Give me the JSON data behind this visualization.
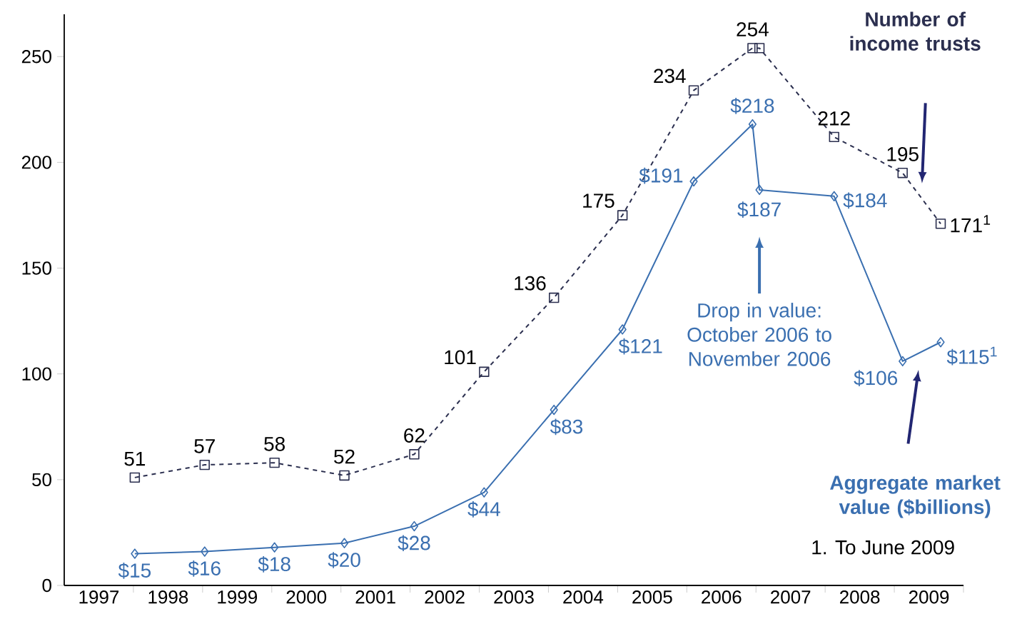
{
  "chart_data": {
    "type": "line",
    "xlim": [
      1997,
      2010
    ],
    "ylim": [
      0,
      270
    ],
    "xticks": [
      {
        "value": 1997.5,
        "label": "1997"
      },
      {
        "value": 1998,
        "label": null
      },
      {
        "value": 1998.5,
        "label": "1998"
      },
      {
        "value": 1999,
        "label": null
      },
      {
        "value": 1999.5,
        "label": "1999"
      },
      {
        "value": 2000,
        "label": null
      },
      {
        "value": 2000.5,
        "label": "2000"
      },
      {
        "value": 2001,
        "label": null
      },
      {
        "value": 2001.5,
        "label": "2001"
      },
      {
        "value": 2002,
        "label": null
      },
      {
        "value": 2002.5,
        "label": "2002"
      },
      {
        "value": 2003,
        "label": null
      },
      {
        "value": 2003.5,
        "label": "2003"
      },
      {
        "value": 2004,
        "label": null
      },
      {
        "value": 2004.5,
        "label": "2004"
      },
      {
        "value": 2005,
        "label": null
      },
      {
        "value": 2005.5,
        "label": "2005"
      },
      {
        "value": 2006,
        "label": null
      },
      {
        "value": 2006.5,
        "label": "2006"
      },
      {
        "value": 2007,
        "label": null
      },
      {
        "value": 2007.5,
        "label": "2007"
      },
      {
        "value": 2008,
        "label": null
      },
      {
        "value": 2008.5,
        "label": "2008"
      },
      {
        "value": 2009,
        "label": null
      },
      {
        "value": 2009.5,
        "label": "2009"
      },
      {
        "value": 2010,
        "label": null
      }
    ],
    "yticks": [
      0,
      50,
      100,
      150,
      200,
      250
    ],
    "series": [
      {
        "name": "Number of income trusts",
        "color": "#2b2f4f",
        "marker": "square",
        "line_style": "dashed",
        "x": [
          1998.02,
          1999.03,
          2000.04,
          2001.05,
          2002.06,
          2003.07,
          2004.08,
          2005.07,
          2006.1,
          2006.95,
          2007.05,
          2008.13,
          2009.12,
          2009.67
        ],
        "values": [
          51,
          57,
          58,
          52,
          62,
          101,
          136,
          175,
          234,
          254,
          254,
          212,
          195,
          171
        ],
        "value_labels": [
          "51",
          "57",
          "58",
          "52",
          "62",
          "101",
          "136",
          "175",
          "234",
          "254",
          null,
          "212",
          "195",
          "171$^{1}$"
        ]
      },
      {
        "name": "Aggregate market value ($billions)",
        "color": "#3a6fb0",
        "marker": "diamond",
        "line_style": "solid",
        "x": [
          1998.02,
          1999.03,
          2000.04,
          2001.05,
          2002.06,
          2003.07,
          2004.08,
          2005.07,
          2006.1,
          2006.95,
          2007.05,
          2008.13,
          2009.12,
          2009.67
        ],
        "values": [
          15,
          16,
          18,
          20,
          28,
          44,
          83,
          121,
          191,
          218,
          187,
          184,
          106,
          115
        ],
        "value_labels": [
          "$15",
          "$16",
          "$18",
          "$20",
          "$28",
          "$44",
          "$83",
          "$121",
          "$191",
          "$218",
          "$187",
          "$184",
          "$106",
          "$115$^{1}$"
        ]
      }
    ],
    "annotations": [
      "Drop in value: October 2006 to November 2006",
      "1.  To June 2009"
    ]
  }
}
